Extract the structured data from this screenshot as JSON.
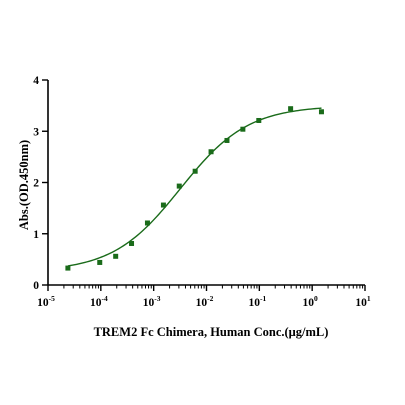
{
  "chart_data": {
    "type": "scatter",
    "xlabel": "TREM2 Fc Chimera, Human Conc.(μg/mL)",
    "ylabel": "Abs.(OD.450nm)",
    "x_scale": "log",
    "xlim": [
      1e-05,
      10
    ],
    "ylim": [
      0,
      4
    ],
    "x_ticks": [
      {
        "base": "10",
        "exp": "-5"
      },
      {
        "base": "10",
        "exp": "-4"
      },
      {
        "base": "10",
        "exp": "-3"
      },
      {
        "base": "10",
        "exp": "-2"
      },
      {
        "base": "10",
        "exp": "-1"
      },
      {
        "base": "10",
        "exp": "0"
      },
      {
        "base": "10",
        "exp": "1"
      }
    ],
    "y_ticks": [
      "0",
      "1",
      "2",
      "3",
      "4"
    ],
    "grid": false,
    "series": [
      {
        "color": "#1a6b1a",
        "marker": "square",
        "points": [
          {
            "x": 2.38e-05,
            "y": 0.33
          },
          {
            "x": 9.54e-05,
            "y": 0.44
          },
          {
            "x": 0.000191,
            "y": 0.56
          },
          {
            "x": 0.000381,
            "y": 0.81
          },
          {
            "x": 0.000763,
            "y": 1.21
          },
          {
            "x": 0.00153,
            "y": 1.56
          },
          {
            "x": 0.00305,
            "y": 1.93
          },
          {
            "x": 0.0061,
            "y": 2.22
          },
          {
            "x": 0.0122,
            "y": 2.6
          },
          {
            "x": 0.0244,
            "y": 2.82
          },
          {
            "x": 0.0488,
            "y": 3.04
          },
          {
            "x": 0.0977,
            "y": 3.21
          },
          {
            "x": 0.391,
            "y": 3.44
          },
          {
            "x": 1.5,
            "y": 3.38
          }
        ],
        "fit": {
          "type": "4PL",
          "bottom": 0.26,
          "top": 3.5,
          "ec50": 0.0032,
          "hill": 0.68
        }
      }
    ]
  }
}
